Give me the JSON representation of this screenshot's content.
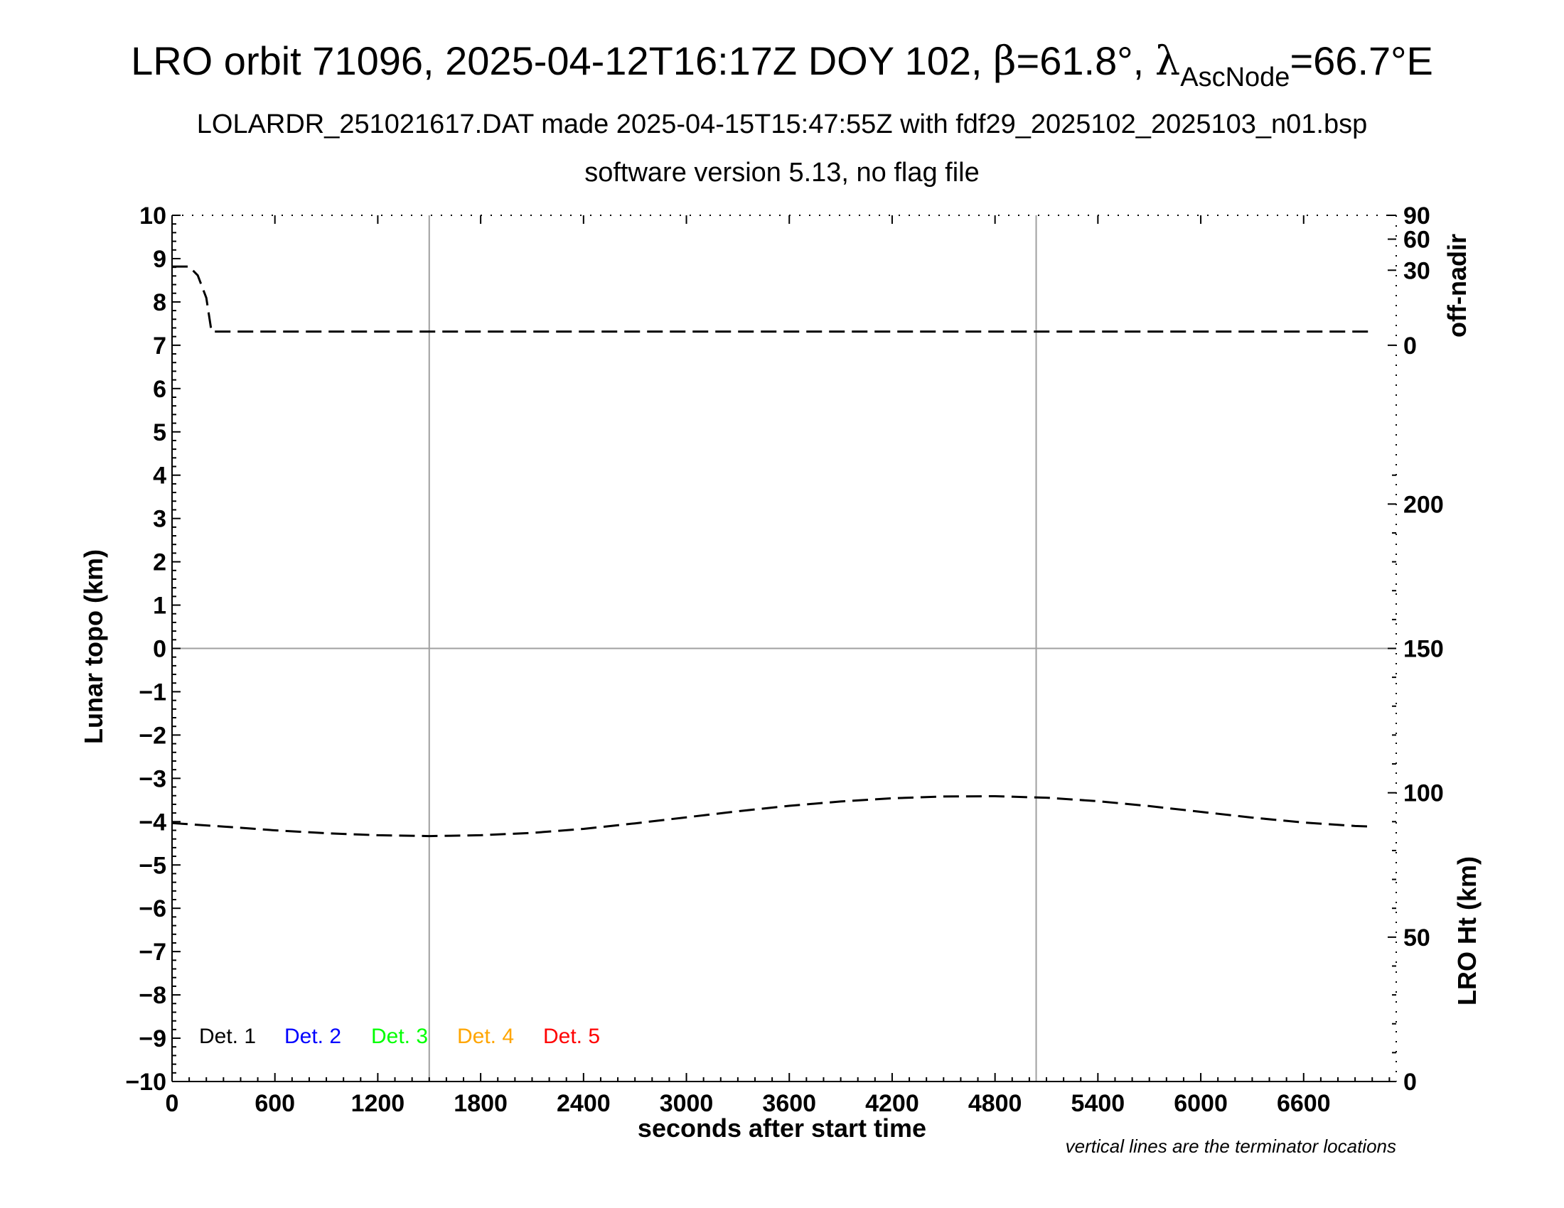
{
  "chart_data": {
    "type": "line",
    "title": {
      "main_before_beta": "LRO orbit 71096, 2025-04-12T16:17Z DOY 102, ",
      "beta_symbol": "β",
      "beta_value": "=61.8°, ",
      "lambda_symbol": "λ",
      "lambda_subscript": "AscNode",
      "lambda_value": "=66.7°E"
    },
    "subtitle": "LOLARDR_251021617.DAT made 2025-04-15T15:47:55Z with fdf29_2025102_2025103_n01.bsp",
    "subtitle2": "software version 5.13, no flag file",
    "xlabel": "seconds after start time",
    "ylabel_left": "Lunar topo (km)",
    "ylabel_right_top": "off-nadir",
    "ylabel_right_bottom": "LRO Ht (km)",
    "note": "vertical lines are the terminator locations",
    "xlim": [
      0,
      7140
    ],
    "ylim_left": [
      -10,
      10
    ],
    "x_ticks": [
      "0",
      "600",
      "1200",
      "1800",
      "2400",
      "3000",
      "3600",
      "4200",
      "4800",
      "5400",
      "6000",
      "6600"
    ],
    "x_tick_values": [
      0,
      600,
      1200,
      1800,
      2400,
      3000,
      3600,
      4200,
      4800,
      5400,
      6000,
      6600
    ],
    "y_left_ticks": [
      "10",
      "9",
      "8",
      "7",
      "6",
      "5",
      "4",
      "3",
      "2",
      "1",
      "0",
      "−1",
      "−2",
      "−3",
      "−4",
      "−5",
      "−6",
      "−7",
      "−8",
      "−9",
      "−10"
    ],
    "y_left_tick_values": [
      10,
      9,
      8,
      7,
      6,
      5,
      4,
      3,
      2,
      1,
      0,
      -1,
      -2,
      -3,
      -4,
      -5,
      -6,
      -7,
      -8,
      -9,
      -10
    ],
    "off_nadir_ticks": [
      "90",
      "60",
      "30",
      "0"
    ],
    "off_nadir_tick_values": [
      90,
      60,
      30,
      0
    ],
    "lro_ht_ticks": [
      "200",
      "150",
      "100",
      "50",
      "0"
    ],
    "lro_ht_tick_values": [
      200,
      150,
      100,
      50,
      0
    ],
    "lro_ht_range": [
      0,
      300
    ],
    "terminator_x": [
      1500,
      5040
    ],
    "grid": "zero line and terminator lines only",
    "legend_position": "bottom-left",
    "legend": [
      {
        "label": "Det. 1",
        "color": "#000000"
      },
      {
        "label": "Det. 2",
        "color": "#0000ff"
      },
      {
        "label": "Det. 3",
        "color": "#00ff00"
      },
      {
        "label": "Det. 4",
        "color": "#ffa500"
      },
      {
        "label": "Det. 5",
        "color": "#ff0000"
      }
    ],
    "series": [
      {
        "name": "off-nadir",
        "axis": "off-nadir",
        "color": "#000000",
        "x": [
          0,
          100,
          150,
          200,
          230,
          1000,
          2000,
          3000,
          4000,
          5000,
          6000,
          7000
        ],
        "y": [
          33,
          33,
          26,
          12,
          1,
          1,
          1,
          1,
          1,
          1,
          1,
          1
        ]
      },
      {
        "name": "LRO Ht",
        "axis": "LRO Ht (km)",
        "color": "#000000",
        "x": [
          0,
          300,
          600,
          900,
          1200,
          1500,
          1800,
          2100,
          2400,
          2700,
          3000,
          3300,
          3600,
          3900,
          4200,
          4500,
          4800,
          5100,
          5400,
          5700,
          6000,
          6300,
          6600,
          6900,
          7000
        ],
        "y": [
          89.5,
          88.3,
          87,
          86,
          85.3,
          85,
          85.3,
          86.1,
          87.5,
          89.4,
          91.5,
          93.6,
          95.5,
          97,
          98.1,
          98.7,
          98.8,
          98.3,
          97.1,
          95.4,
          93.4,
          91.4,
          89.7,
          88.5,
          88.3
        ]
      }
    ]
  }
}
